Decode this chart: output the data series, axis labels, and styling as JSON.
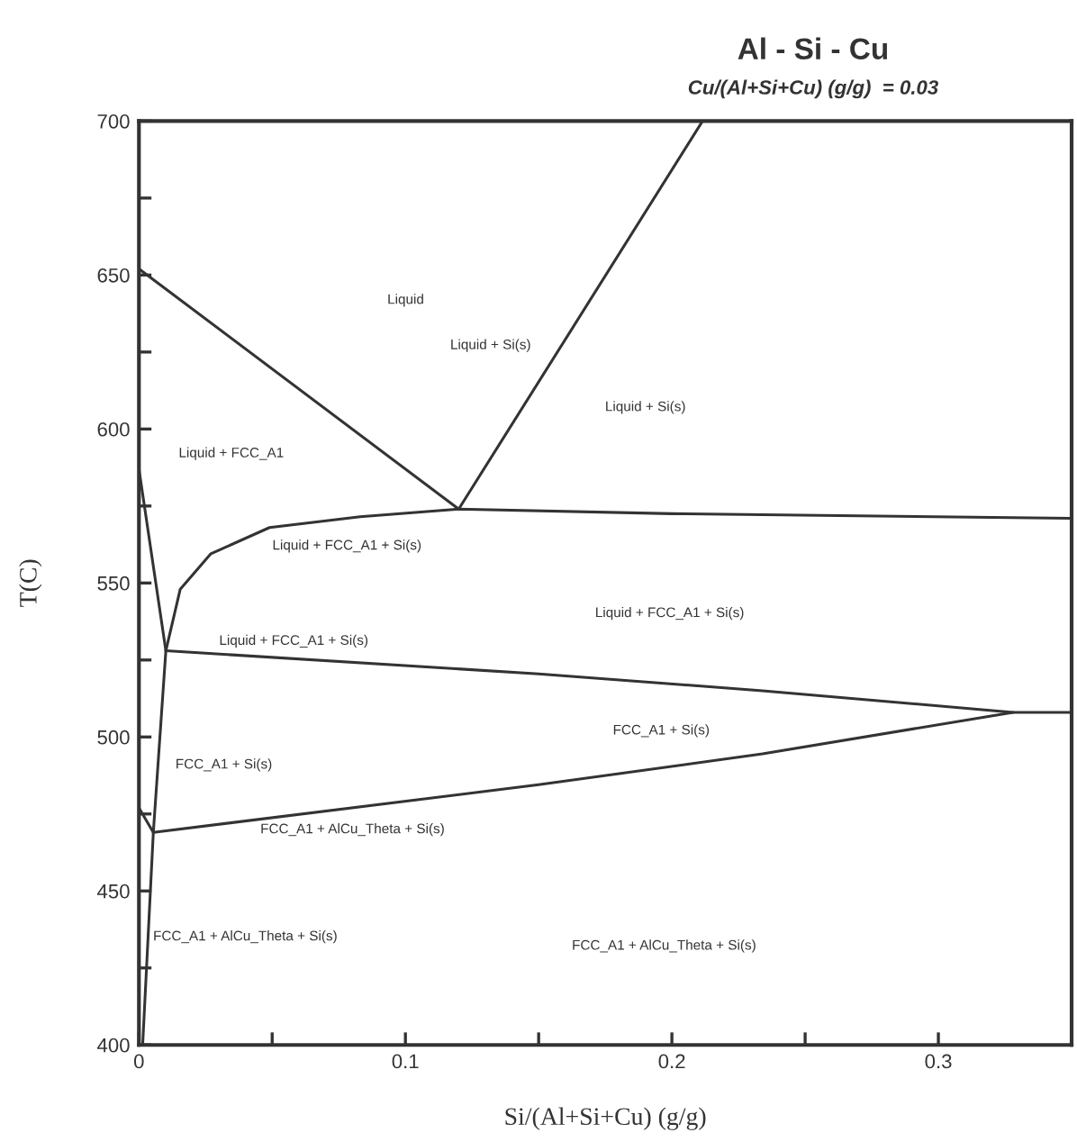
{
  "chart_data": {
    "type": "line",
    "title": "Al - Si - Cu",
    "subtitle": "Cu/(Al+Si+Cu) (g/g)  = 0.03",
    "xlabel": "Si/(Al+Si+Cu) (g/g)",
    "ylabel": "T(C)",
    "xlim": [
      0,
      0.35
    ],
    "ylim": [
      400,
      700
    ],
    "xticks": [
      0,
      {
        "value": 0.05,
        "label": null
      },
      0.1,
      {
        "value": 0.15,
        "label": null
      },
      0.2,
      {
        "value": 0.25,
        "label": null
      },
      0.3,
      {
        "value": 0.35,
        "label": null
      }
    ],
    "yticks": [
      400,
      {
        "value": 425,
        "label": null
      },
      450,
      {
        "value": 475,
        "label": null
      },
      500,
      {
        "value": 525,
        "label": null
      },
      550,
      {
        "value": 575,
        "label": null
      },
      600,
      {
        "value": 625,
        "label": null
      },
      650,
      {
        "value": 675,
        "label": null
      },
      700
    ],
    "series": [
      {
        "color": "#333333",
        "x": [
          0,
          0.12
        ],
        "values": [
          652,
          574
        ]
      },
      {
        "color": "#333333",
        "x": [
          0.12,
          0.2115
        ],
        "values": [
          574,
          700
        ]
      },
      {
        "color": "#333333",
        "x": [
          0.0101,
          0.0155,
          0.027,
          0.049,
          0.083,
          0.12,
          0.2,
          0.35
        ],
        "values": [
          528,
          548,
          559.5,
          568,
          571.5,
          574,
          572.5,
          571
        ]
      },
      {
        "color": "#333333",
        "x": [
          0,
          0.0101,
          0.0054,
          0.0014
        ],
        "values": [
          587,
          528,
          469,
          400
        ]
      },
      {
        "color": "#333333",
        "x": [
          0.0101,
          0.15,
          0.234,
          0.328,
          0.35
        ],
        "values": [
          528,
          520.5,
          515,
          508,
          508
        ]
      },
      {
        "color": "#333333",
        "x": [
          0.0054,
          0.15,
          0.234,
          0.328
        ],
        "values": [
          469,
          484.5,
          494.5,
          508
        ]
      },
      {
        "color": "#333333",
        "x": [
          0,
          0.0054
        ],
        "values": [
          477,
          469
        ]
      }
    ],
    "annotations": [
      "Liquid",
      "Liquid + Si(s)",
      "Liquid + Si(s)",
      "Liquid + FCC_A1",
      "Liquid + FCC_A1 + Si(s)",
      "Liquid + FCC_A1 + Si(s)",
      "Liquid + FCC_A1 + Si(s)",
      "FCC_A1 + Si(s)",
      "FCC_A1 + Si(s)",
      "FCC_A1 + AlCu_Theta + Si(s)",
      "FCC_A1 + AlCu_Theta + Si(s)",
      "FCC_A1 + AlCu_Theta + Si(s)"
    ]
  }
}
